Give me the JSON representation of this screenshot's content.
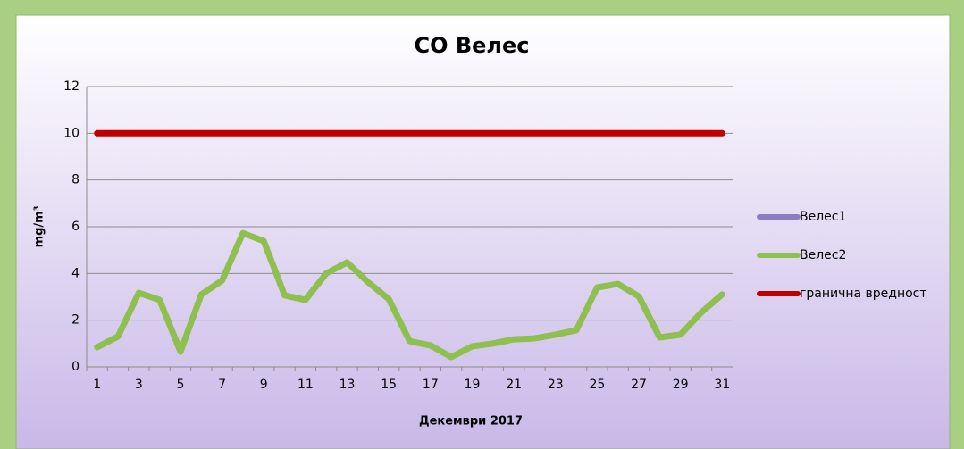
{
  "chart_data": {
    "type": "line",
    "title": "CO Велес",
    "y_label": "mg/m³",
    "x_label": "Декември 2017",
    "categories": [
      "1",
      null,
      "3",
      null,
      "5",
      null,
      "7",
      null,
      "9",
      null,
      "11",
      null,
      "13",
      null,
      "15",
      null,
      "17",
      null,
      "19",
      null,
      "21",
      null,
      "23",
      null,
      "25",
      null,
      "27",
      null,
      "29",
      null,
      "31"
    ],
    "series": [
      {
        "name": "Велес1",
        "color": "#8e7cc3",
        "values": [
          null,
          null,
          null,
          null,
          null,
          null,
          null,
          null,
          null,
          null,
          null,
          null,
          null,
          null,
          null,
          null,
          null,
          null,
          null,
          null,
          null,
          null,
          null,
          null,
          null,
          null,
          null,
          null,
          null,
          null,
          null
        ]
      },
      {
        "name": "Велес2",
        "color": "#8fbf4f",
        "values": [
          0.84,
          1.3,
          3.17,
          2.87,
          0.65,
          3.1,
          3.7,
          5.73,
          5.39,
          3.06,
          2.87,
          4.0,
          4.47,
          3.63,
          2.9,
          1.1,
          0.92,
          0.42,
          0.88,
          1.0,
          1.18,
          1.22,
          1.38,
          1.57,
          3.4,
          3.55,
          3.02,
          1.26,
          1.38,
          2.33,
          3.1
        ]
      },
      {
        "name": "гранична вредност",
        "color": "#c00000",
        "values": [
          10,
          10,
          10,
          10,
          10,
          10,
          10,
          10,
          10,
          10,
          10,
          10,
          10,
          10,
          10,
          10,
          10,
          10,
          10,
          10,
          10,
          10,
          10,
          10,
          10,
          10,
          10,
          10,
          10,
          10,
          10
        ]
      }
    ],
    "ylim": [
      0,
      12
    ],
    "yticks": [
      0,
      2,
      4,
      6,
      8,
      10,
      12
    ],
    "grid": true,
    "legend": "right"
  }
}
